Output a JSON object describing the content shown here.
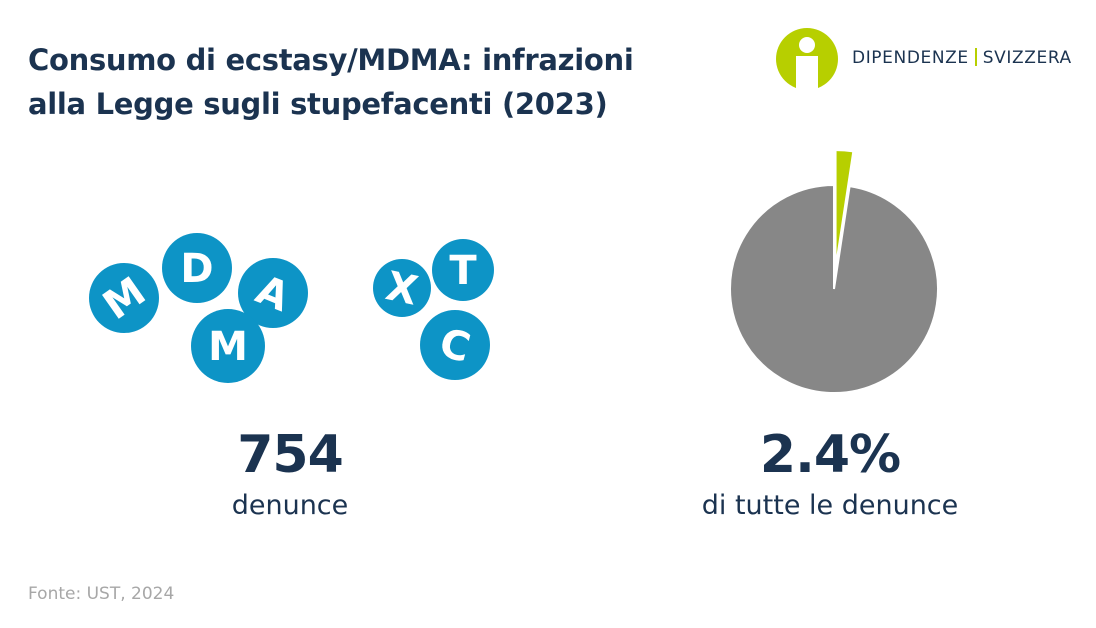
{
  "title": {
    "line1": "Consumo di ecstasy/MDMA: infrazioni",
    "line2": "alla Legge sugli stupefacenti (2023)"
  },
  "logo": {
    "icon": "person-i-icon",
    "word1": "DIPENDENZE",
    "word2": "SVIZZERA"
  },
  "pill_letters": [
    "M",
    "D",
    "A",
    "M",
    "X",
    "T",
    "C"
  ],
  "stat_left": {
    "value": "754",
    "label": "denunce"
  },
  "stat_right": {
    "value": "2.4%",
    "label": "di tutte le denunce"
  },
  "source": "Fonte: UST, 2024",
  "colors": {
    "text": "#1b3350",
    "pill": "#0d94c6",
    "pie_main": "#878787",
    "pie_highlight": "#b7cf00",
    "source": "#a7a7a7"
  },
  "chart_data": {
    "type": "pie",
    "title": "",
    "slices": [
      {
        "name": "",
        "value": 2.4,
        "color": "#b7cf00",
        "exploded": true
      },
      {
        "name": "",
        "value": 97.6,
        "color": "#878787"
      }
    ]
  }
}
